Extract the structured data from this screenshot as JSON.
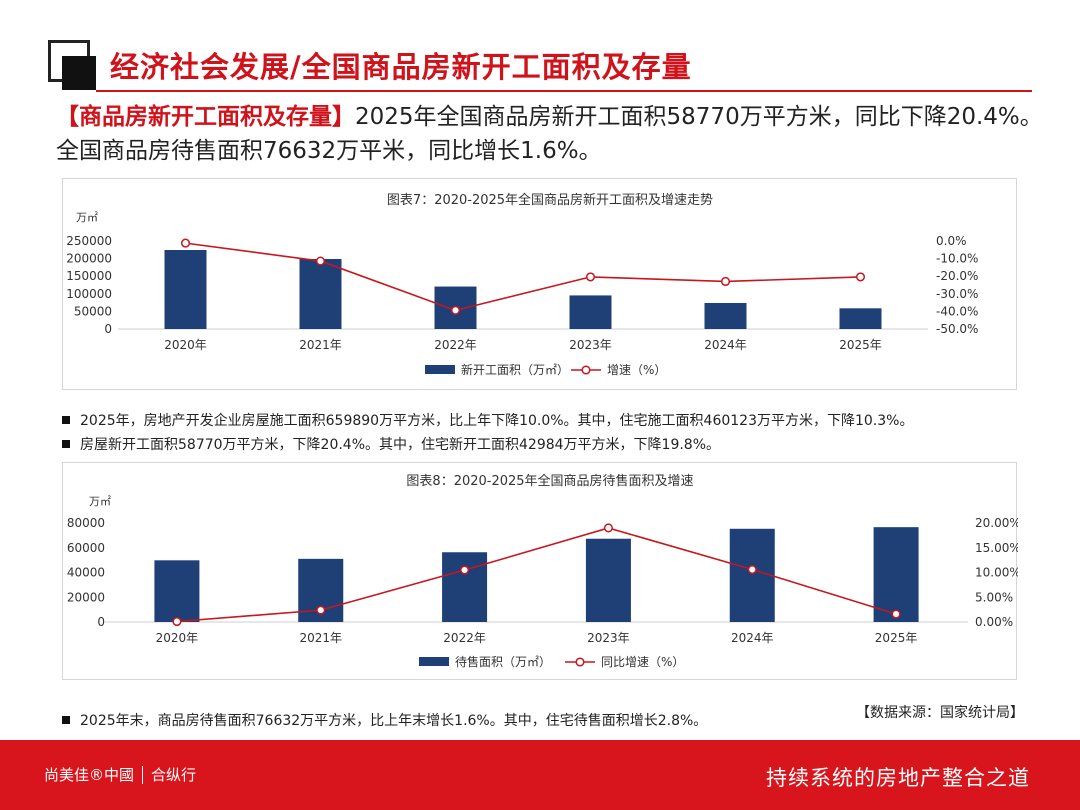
{
  "header": {
    "title": "经济社会发展/全国商品房新开工面积及存量"
  },
  "summary": {
    "highlight": "【商品房新开工面积及存量】",
    "line1": "2025年全国商品房新开工面积58770万平方米，同比下降20.4%。",
    "line2": "全国商品房待售面积76632万平米，同比增长1.6%。"
  },
  "chart_data": [
    {
      "type": "bar",
      "title": "图表7：2020-2025年全国商品房新开工面积及增速走势",
      "ylabel": "万㎡",
      "categories": [
        "2020年",
        "2021年",
        "2022年",
        "2023年",
        "2024年",
        "2025年"
      ],
      "ylim": [
        0,
        250000
      ],
      "y_ticks": [
        "250000",
        "200000",
        "150000",
        "100000",
        "50000",
        "0"
      ],
      "y2lim": [
        -50,
        0
      ],
      "y2_ticks": [
        "0.0%",
        "-10.0%",
        "-20.0%",
        "-30.0%",
        "-40.0%",
        "-50.0%"
      ],
      "series": [
        {
          "name": "新开工面积（万㎡）",
          "kind": "bar",
          "axis": "left",
          "color": "#1f3f77",
          "values": [
            224433,
            198895,
            120587,
            95376,
            73893,
            58770
          ]
        },
        {
          "name": "增速（%）",
          "kind": "line",
          "axis": "right",
          "color": "#c8161d",
          "values": [
            -1.2,
            -11.4,
            -39.4,
            -20.4,
            -23.0,
            -20.4
          ]
        }
      ],
      "grid": false,
      "legend": "bottom"
    },
    {
      "type": "bar",
      "title": "图表8：2020-2025年全国商品房待售面积及增速",
      "ylabel": "万㎡",
      "categories": [
        "2020年",
        "2021年",
        "2022年",
        "2023年",
        "2024年",
        "2025年"
      ],
      "ylim": [
        0,
        80000
      ],
      "y_ticks": [
        "80000",
        "60000",
        "40000",
        "20000",
        "0"
      ],
      "y2lim": [
        0,
        20
      ],
      "y2_ticks": [
        "20.00%",
        "15.00%",
        "10.00%",
        "5.00%",
        "0.00%"
      ],
      "series": [
        {
          "name": "待售面积（万㎡）",
          "kind": "bar",
          "axis": "left",
          "color": "#1f3f77",
          "values": [
            49850,
            51023,
            56366,
            67295,
            75327,
            76632
          ]
        },
        {
          "name": "同比增速（%）",
          "kind": "line",
          "axis": "right",
          "color": "#c8161d",
          "values": [
            0.1,
            2.4,
            10.5,
            19.0,
            10.6,
            1.6
          ]
        }
      ],
      "grid": false,
      "legend": "bottom"
    }
  ],
  "notes": {
    "note1": "2025年，房地产开发企业房屋施工面积659890万平方米，比上年下降10.0%。其中，住宅施工面积460123万平方米，下降10.3%。",
    "note2": "房屋新开工面积58770万平方米，下降20.4%。其中，住宅新开工面积42984万平方米，下降19.8%。",
    "note3": "2025年末，商品房待售面积76632万平方米，比上年末增长1.6%。其中，住宅待售面积增长2.8%。",
    "source": "【数据来源：国家统计局】"
  },
  "footer": {
    "brand_left": "尚美佳®中國",
    "brand_right": "合纵行",
    "slogan": "持续系统的房地产整合之道"
  },
  "colors": {
    "accent": "#d0121b",
    "footer_bg": "#d8141c",
    "bar": "#1f3f77",
    "line": "#c8161d"
  }
}
